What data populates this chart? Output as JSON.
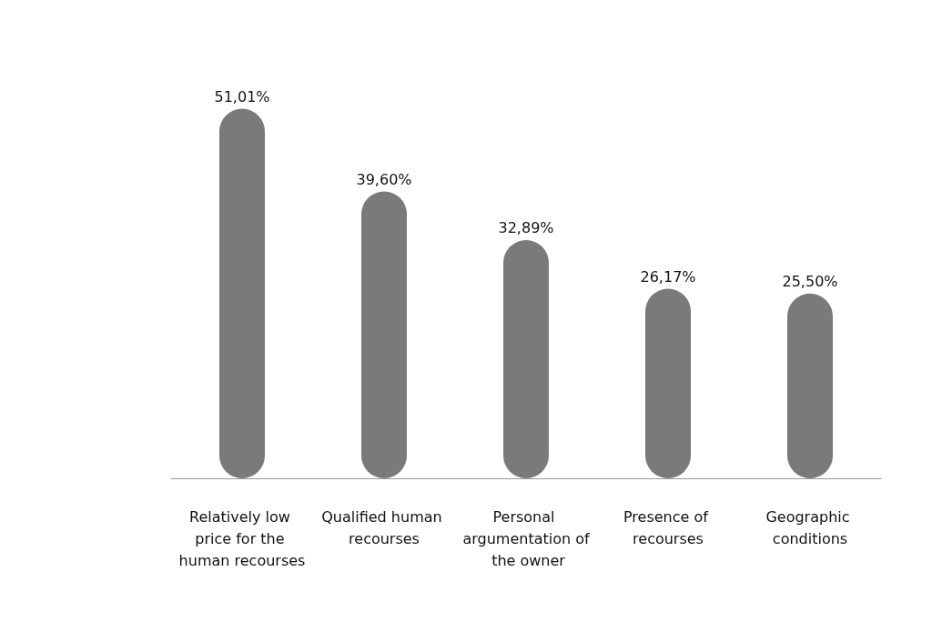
{
  "chart_data": {
    "type": "bar",
    "categories": [
      "Relatively low price for the human recourses",
      "Qualified human recourses",
      "Personal argumentation of the owner",
      "Presence of recourses",
      "Geographic conditions"
    ],
    "values": [
      51.01,
      39.6,
      32.89,
      26.17,
      25.5
    ],
    "value_labels": [
      "51,01%",
      "39,60%",
      "32,89%",
      "26,17%",
      "25,50%"
    ],
    "color": "#7a7a7a"
  }
}
